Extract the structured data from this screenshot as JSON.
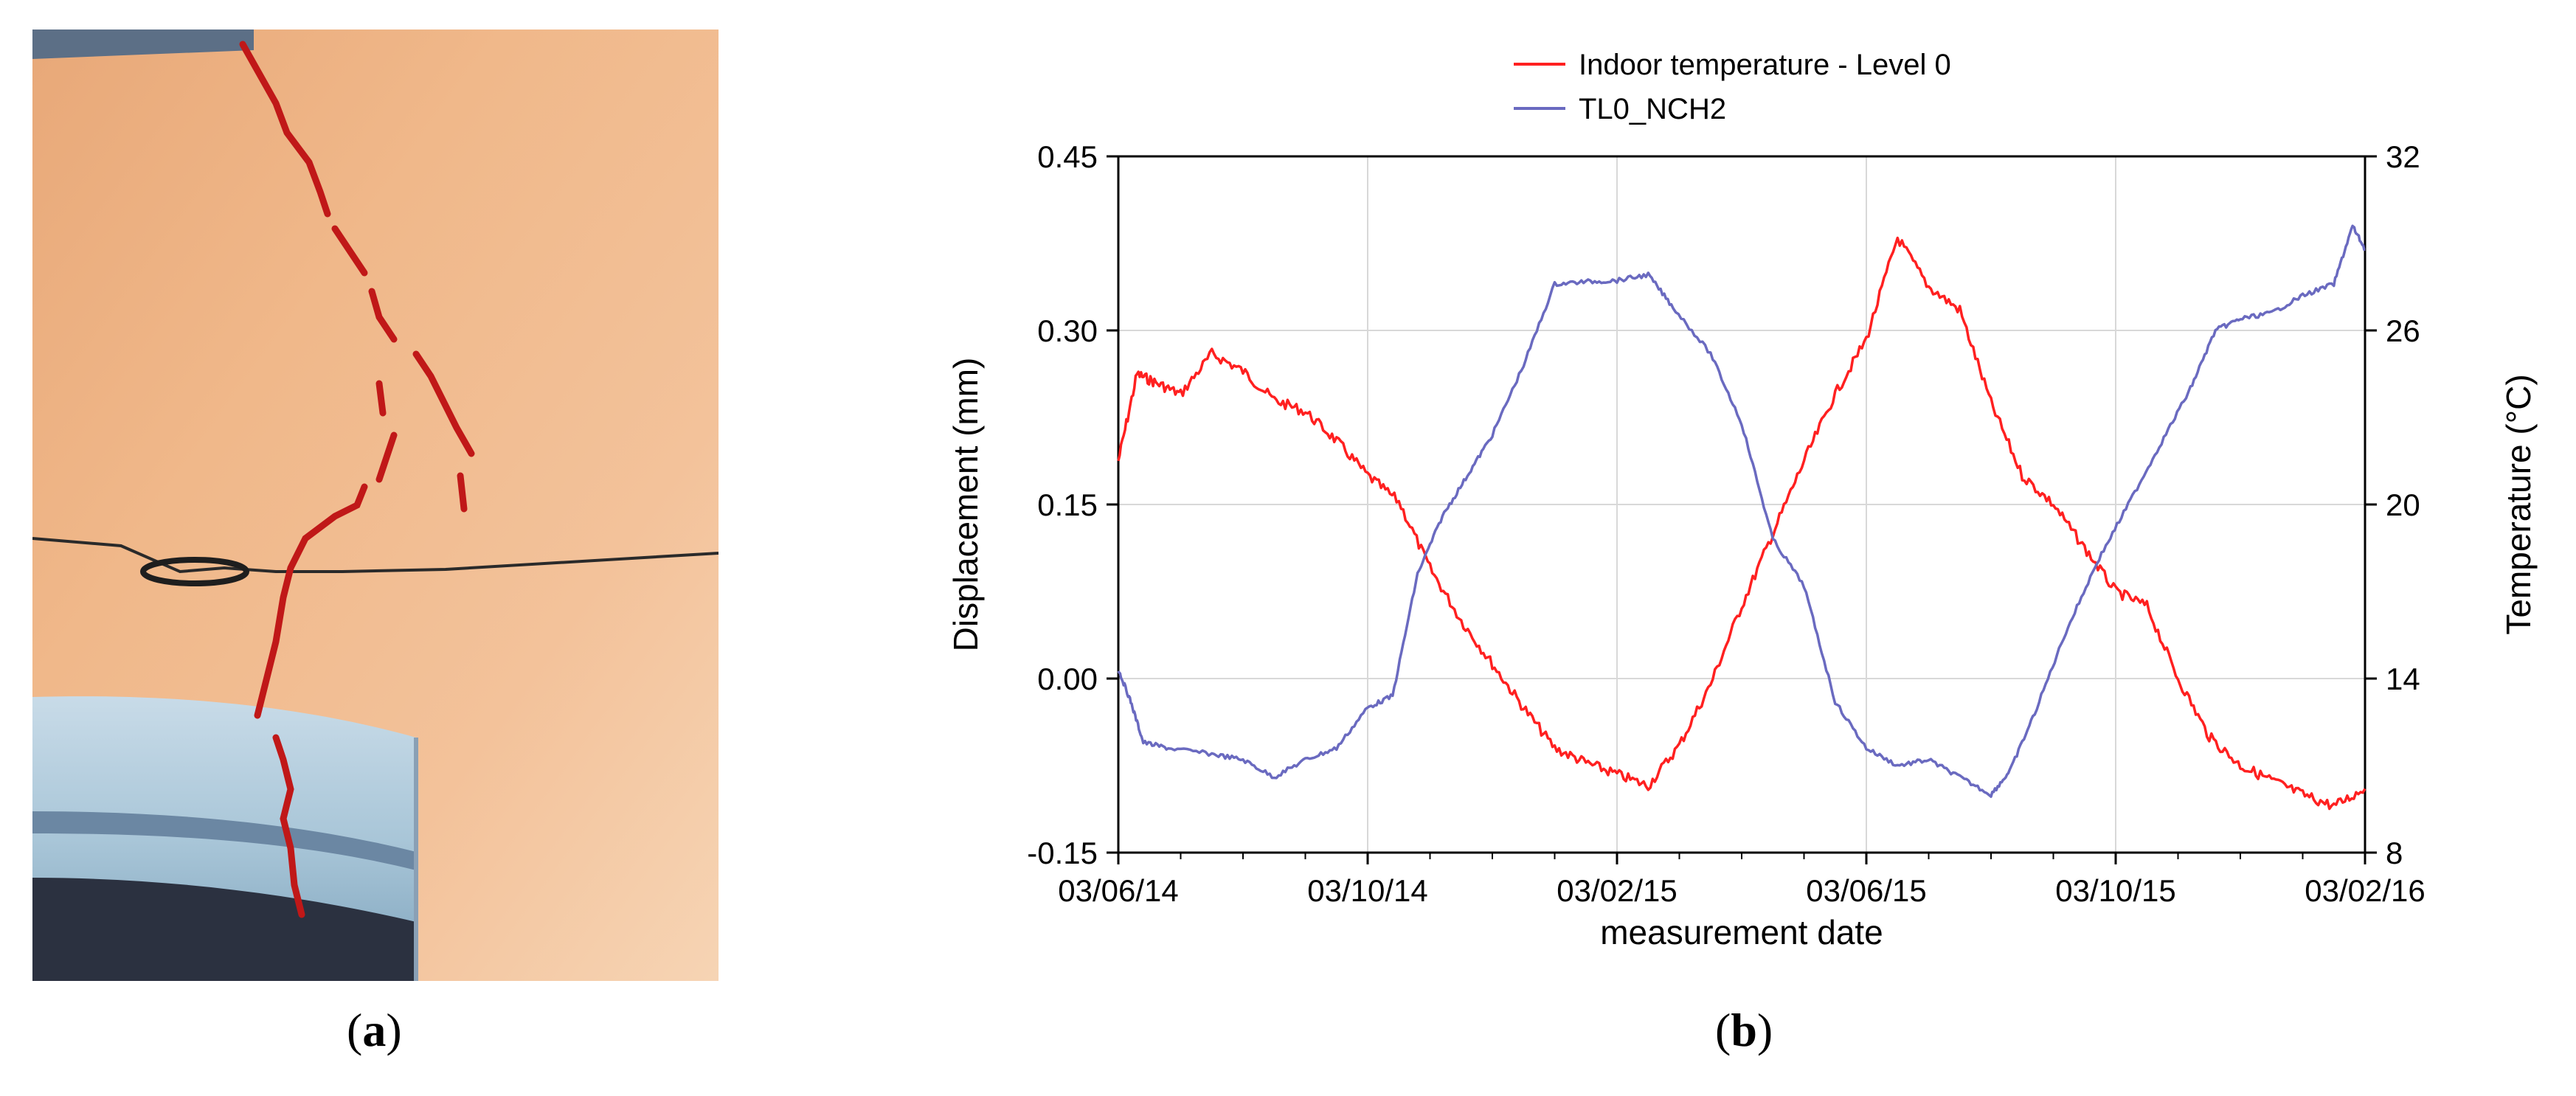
{
  "panel_labels": {
    "a": "a",
    "b": "b"
  },
  "chart_data": {
    "type": "line",
    "title": "",
    "xlabel": "measurement date",
    "ylabel": "Displacement (mm)",
    "y2label": "Temperature (°C)",
    "x_ticks": [
      "03/06/14",
      "03/10/14",
      "03/02/15",
      "03/06/15",
      "03/10/15",
      "03/02/16"
    ],
    "x_range_months": [
      0,
      20
    ],
    "ylim": [
      -0.15,
      0.45
    ],
    "y_ticks": [
      "0.45",
      "0.30",
      "0.15",
      "0.00",
      "-0.15"
    ],
    "y_tick_values": [
      0.45,
      0.3,
      0.15,
      0.0,
      -0.15
    ],
    "y2lim": [
      8,
      32
    ],
    "y2_ticks": [
      "32",
      "26",
      "20",
      "14",
      "8"
    ],
    "y2_tick_values": [
      32,
      26,
      20,
      14,
      8
    ],
    "legend_position": "top-center",
    "series": [
      {
        "name": "Indoor temperature - Level 0",
        "axis": "right",
        "color": "#ff2020",
        "x": [
          0,
          0.3,
          0.6,
          1,
          1.5,
          2,
          2.5,
          3,
          3.5,
          4,
          4.5,
          5,
          5.5,
          6,
          6.5,
          7,
          7.5,
          8,
          8.5,
          9,
          9.5,
          10,
          10.5,
          11,
          11.5,
          12,
          12.5,
          13,
          13.5,
          14,
          14.5,
          15,
          15.5,
          16,
          16.5,
          17,
          17.5,
          18,
          18.5,
          19,
          19.5,
          20
        ],
        "values": [
          21.5,
          24.5,
          24.2,
          23.8,
          25.2,
          24.6,
          23.6,
          23.2,
          22.2,
          21.0,
          20.1,
          17.8,
          16.0,
          14.5,
          13.0,
          11.6,
          11.1,
          10.7,
          10.3,
          11.7,
          13.8,
          16.5,
          19.0,
          21.5,
          23.8,
          25.7,
          29.2,
          27.5,
          26.7,
          23.5,
          21.0,
          20.0,
          18.5,
          17.0,
          16.5,
          14.0,
          12.0,
          11.0,
          10.5,
          10.0,
          9.6,
          10.2
        ]
      },
      {
        "name": "TL0_NCH2",
        "axis": "left",
        "color": "#6a6ac0",
        "x": [
          0,
          0.2,
          0.4,
          0.8,
          1.5,
          2,
          2.5,
          3,
          3.5,
          4,
          4.4,
          4.8,
          5.2,
          5.6,
          6,
          6.5,
          7,
          7.5,
          8,
          8.5,
          8.9,
          9.5,
          10,
          10.5,
          11,
          11.5,
          12,
          12.5,
          13,
          13.5,
          14,
          14.3,
          14.7,
          15.2,
          15.7,
          16.2,
          16.7,
          17.2,
          17.6,
          18,
          18.5,
          19,
          19.5,
          19.8,
          20
        ],
        "values": [
          0.008,
          -0.02,
          -0.055,
          -0.06,
          -0.065,
          -0.07,
          -0.085,
          -0.07,
          -0.06,
          -0.025,
          -0.015,
          0.09,
          0.14,
          0.175,
          0.21,
          0.27,
          0.34,
          0.342,
          0.343,
          0.348,
          0.32,
          0.28,
          0.22,
          0.12,
          0.08,
          -0.02,
          -0.06,
          -0.075,
          -0.07,
          -0.085,
          -0.1,
          -0.08,
          -0.03,
          0.04,
          0.1,
          0.15,
          0.2,
          0.25,
          0.3,
          0.31,
          0.315,
          0.33,
          0.34,
          0.39,
          0.37
        ]
      }
    ]
  }
}
